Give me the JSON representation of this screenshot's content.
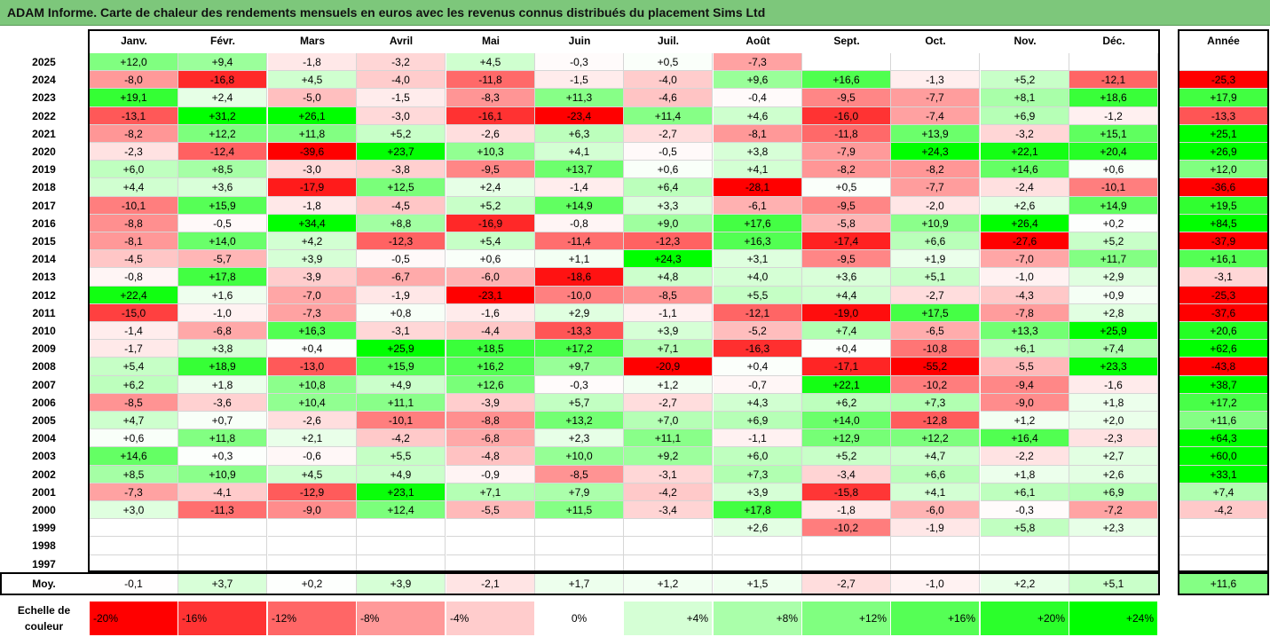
{
  "title": "ADAM Informe. Carte de chaleur des rendements mensuels en euros avec les revenus connus distribués du placement Sims Ltd",
  "chart_data": {
    "type": "heatmap",
    "months": [
      "Janv.",
      "Févr.",
      "Mars",
      "Avril",
      "Mai",
      "Juin",
      "Juil.",
      "Août",
      "Sept.",
      "Oct.",
      "Nov.",
      "Déc."
    ],
    "year_header": "Année",
    "rows": [
      {
        "year": "2025",
        "m": [
          "+12,0",
          "+9,4",
          "-1,8",
          "-3,2",
          "+4,5",
          "-0,3",
          "+0,5",
          "-7,3",
          "",
          "",
          "",
          ""
        ],
        "annual": ""
      },
      {
        "year": "2024",
        "m": [
          "-8,0",
          "-16,8",
          "+4,5",
          "-4,0",
          "-11,8",
          "-1,5",
          "-4,0",
          "+9,6",
          "+16,6",
          "-1,3",
          "+5,2",
          "-12,1"
        ],
        "annual": "-25,3"
      },
      {
        "year": "2023",
        "m": [
          "+19,1",
          "+2,4",
          "-5,0",
          "-1,5",
          "-8,3",
          "+11,3",
          "-4,6",
          "-0,4",
          "-9,5",
          "-7,7",
          "+8,1",
          "+18,6"
        ],
        "annual": "+17,9"
      },
      {
        "year": "2022",
        "m": [
          "-13,1",
          "+31,2",
          "+26,1",
          "-3,0",
          "-16,1",
          "-23,4",
          "+11,4",
          "+4,6",
          "-16,0",
          "-7,4",
          "+6,9",
          "-1,2"
        ],
        "annual": "-13,3"
      },
      {
        "year": "2021",
        "m": [
          "-8,2",
          "+12,2",
          "+11,8",
          "+5,2",
          "-2,6",
          "+6,3",
          "-2,7",
          "-8,1",
          "-11,8",
          "+13,9",
          "-3,2",
          "+15,1"
        ],
        "annual": "+25,1"
      },
      {
        "year": "2020",
        "m": [
          "-2,3",
          "-12,4",
          "-39,6",
          "+23,7",
          "+10,3",
          "+4,1",
          "-0,5",
          "+3,8",
          "-7,9",
          "+24,3",
          "+22,1",
          "+20,4"
        ],
        "annual": "+26,9"
      },
      {
        "year": "2019",
        "m": [
          "+6,0",
          "+8,5",
          "-3,0",
          "-3,8",
          "-9,5",
          "+13,7",
          "+0,6",
          "+4,1",
          "-8,2",
          "-8,2",
          "+14,6",
          "+0,6"
        ],
        "annual": "+12,0"
      },
      {
        "year": "2018",
        "m": [
          "+4,4",
          "+3,6",
          "-17,9",
          "+12,5",
          "+2,4",
          "-1,4",
          "+6,4",
          "-28,1",
          "+0,5",
          "-7,7",
          "-2,4",
          "-10,1"
        ],
        "annual": "-36,6"
      },
      {
        "year": "2017",
        "m": [
          "-10,1",
          "+15,9",
          "-1,8",
          "-4,5",
          "+5,2",
          "+14,9",
          "+3,3",
          "-6,1",
          "-9,5",
          "-2,0",
          "+2,6",
          "+14,9"
        ],
        "annual": "+19,5"
      },
      {
        "year": "2016",
        "m": [
          "-8,8",
          "-0,5",
          "+34,4",
          "+8,8",
          "-16,9",
          "-0,8",
          "+9,0",
          "+17,6",
          "-5,8",
          "+10,9",
          "+26,4",
          "+0,2"
        ],
        "annual": "+84,5"
      },
      {
        "year": "2015",
        "m": [
          "-8,1",
          "+14,0",
          "+4,2",
          "-12,3",
          "+5,4",
          "-11,4",
          "-12,3",
          "+16,3",
          "-17,4",
          "+6,6",
          "-27,6",
          "+5,2"
        ],
        "annual": "-37,9"
      },
      {
        "year": "2014",
        "m": [
          "-4,5",
          "-5,7",
          "+3,9",
          "-0,5",
          "+0,6",
          "+1,1",
          "+24,3",
          "+3,1",
          "-9,5",
          "+1,9",
          "-7,0",
          "+11,7"
        ],
        "annual": "+16,1"
      },
      {
        "year": "2013",
        "m": [
          "-0,8",
          "+17,8",
          "-3,9",
          "-6,7",
          "-6,0",
          "-18,6",
          "+4,8",
          "+4,0",
          "+3,6",
          "+5,1",
          "-1,0",
          "+2,9"
        ],
        "annual": "-3,1"
      },
      {
        "year": "2012",
        "m": [
          "+22,4",
          "+1,6",
          "-7,0",
          "-1,9",
          "-23,1",
          "-10,0",
          "-8,5",
          "+5,5",
          "+4,4",
          "-2,7",
          "-4,3",
          "+0,9"
        ],
        "annual": "-25,3"
      },
      {
        "year": "2011",
        "m": [
          "-15,0",
          "-1,0",
          "-7,3",
          "+0,8",
          "-1,6",
          "+2,9",
          "-1,1",
          "-12,1",
          "-19,0",
          "+17,5",
          "-7,8",
          "+2,8"
        ],
        "annual": "-37,6"
      },
      {
        "year": "2010",
        "m": [
          "-1,4",
          "-6,8",
          "+16,3",
          "-3,1",
          "-4,4",
          "-13,3",
          "+3,9",
          "-5,2",
          "+7,4",
          "-6,5",
          "+13,3",
          "+25,9"
        ],
        "annual": "+20,6"
      },
      {
        "year": "2009",
        "m": [
          "-1,7",
          "+3,8",
          "+0,4",
          "+25,9",
          "+18,5",
          "+17,2",
          "+7,1",
          "-16,3",
          "+0,4",
          "-10,8",
          "+6,1",
          "+7,4"
        ],
        "annual": "+62,6"
      },
      {
        "year": "2008",
        "m": [
          "+5,4",
          "+18,9",
          "-13,0",
          "+15,9",
          "+16,2",
          "+9,7",
          "-20,9",
          "+0,4",
          "-17,1",
          "-55,2",
          "-5,5",
          "+23,3"
        ],
        "annual": "-43,8"
      },
      {
        "year": "2007",
        "m": [
          "+6,2",
          "+1,8",
          "+10,8",
          "+4,9",
          "+12,6",
          "-0,3",
          "+1,2",
          "-0,7",
          "+22,1",
          "-10,2",
          "-9,4",
          "-1,6"
        ],
        "annual": "+38,7"
      },
      {
        "year": "2006",
        "m": [
          "-8,5",
          "-3,6",
          "+10,4",
          "+11,1",
          "-3,9",
          "+5,7",
          "-2,7",
          "+4,3",
          "+6,2",
          "+7,3",
          "-9,0",
          "+1,8"
        ],
        "annual": "+17,2"
      },
      {
        "year": "2005",
        "m": [
          "+4,7",
          "+0,7",
          "-2,6",
          "-10,1",
          "-8,8",
          "+13,2",
          "+7,0",
          "+6,9",
          "+14,0",
          "-12,8",
          "+1,2",
          "+2,0"
        ],
        "annual": "+11,6"
      },
      {
        "year": "2004",
        "m": [
          "+0,6",
          "+11,8",
          "+2,1",
          "-4,2",
          "-6,8",
          "+2,3",
          "+11,1",
          "-1,1",
          "+12,9",
          "+12,2",
          "+16,4",
          "-2,3"
        ],
        "annual": "+64,3"
      },
      {
        "year": "2003",
        "m": [
          "+14,6",
          "+0,3",
          "-0,6",
          "+5,5",
          "-4,8",
          "+10,0",
          "+9,2",
          "+6,0",
          "+5,2",
          "+4,7",
          "-2,2",
          "+2,7"
        ],
        "annual": "+60,0"
      },
      {
        "year": "2002",
        "m": [
          "+8,5",
          "+10,9",
          "+4,5",
          "+4,9",
          "-0,9",
          "-8,5",
          "-3,1",
          "+7,3",
          "-3,4",
          "+6,6",
          "+1,8",
          "+2,6"
        ],
        "annual": "+33,1"
      },
      {
        "year": "2001",
        "m": [
          "-7,3",
          "-4,1",
          "-12,9",
          "+23,1",
          "+7,1",
          "+7,9",
          "-4,2",
          "+3,9",
          "-15,8",
          "+4,1",
          "+6,1",
          "+6,9"
        ],
        "annual": "+7,4"
      },
      {
        "year": "2000",
        "m": [
          "+3,0",
          "-11,3",
          "-9,0",
          "+12,4",
          "-5,5",
          "+11,5",
          "-3,4",
          "+17,8",
          "-1,8",
          "-6,0",
          "-0,3",
          "-7,2"
        ],
        "annual": "-4,2"
      },
      {
        "year": "1999",
        "m": [
          "",
          "",
          "",
          "",
          "",
          "",
          "",
          "+2,6",
          "-10,2",
          "-1,9",
          "+5,8",
          "+2,3"
        ],
        "annual": ""
      },
      {
        "year": "1998",
        "m": [
          "",
          "",
          "",
          "",
          "",
          "",
          "",
          "",
          "",
          "",
          "",
          ""
        ],
        "annual": ""
      },
      {
        "year": "1997",
        "m": [
          "",
          "",
          "",
          "",
          "",
          "",
          "",
          "",
          "",
          "",
          "",
          ""
        ],
        "annual": ""
      }
    ],
    "average": {
      "label": "Moy.",
      "m": [
        "-0,1",
        "+3,7",
        "+0,2",
        "+3,9",
        "-2,1",
        "+1,7",
        "+1,2",
        "+1,5",
        "-2,7",
        "-1,0",
        "+2,2",
        "+5,1"
      ],
      "annual": "+11,6"
    },
    "legend": {
      "label": "Echelle de couleur",
      "stops": [
        "-20%",
        "-16%",
        "-12%",
        "-8%",
        "-4%",
        "0%",
        "+4%",
        "+8%",
        "+12%",
        "+16%",
        "+20%",
        "+24%"
      ]
    }
  }
}
